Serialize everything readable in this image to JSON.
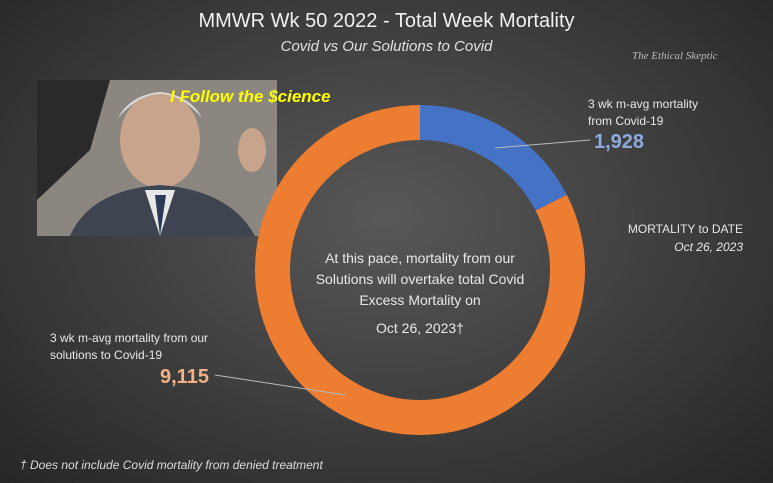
{
  "chart_data": {
    "type": "donut",
    "title": "MMWR  Wk 50 2022 - Total  Week Mortality",
    "subtitle": "Covid vs Our Solutions to Covid",
    "categories": [
      "3 wk m-avg mortality from Covid-19",
      "3 wk m-avg mortality from our solutions to Covid-19"
    ],
    "values": [
      1928,
      9115
    ],
    "value_labels": [
      "1,928",
      "9,115"
    ],
    "colors": [
      "#4472c4",
      "#ed7d31"
    ],
    "center_text": "At this pace,  mortality from our Solutions will overtake total Covid Excess Mortality on",
    "center_date": "Oct 26, 2023†"
  },
  "watermark": "The Ethical Skeptic",
  "photo_caption": "I Follow the $cience",
  "annotation": {
    "label": "MORTALITY to DATE",
    "date": "Oct 26, 2023"
  },
  "footnote": "† Does not include Covid mortality from denied treatment"
}
